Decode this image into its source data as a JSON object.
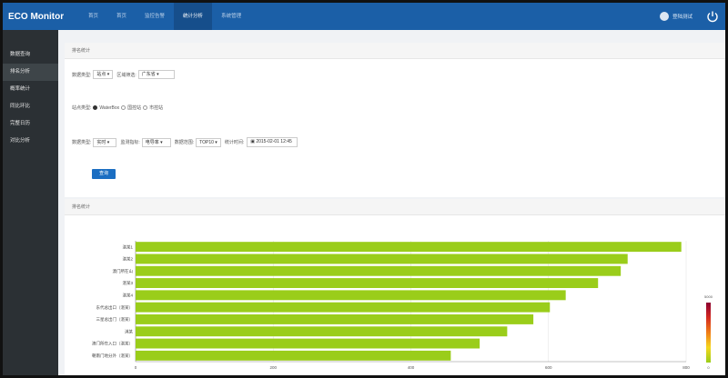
{
  "app": {
    "title": "ECO Monitor"
  },
  "nav": {
    "items": [
      {
        "label": "首页",
        "active": false
      },
      {
        "label": "首页",
        "active": false
      },
      {
        "label": "监控告警",
        "active": false
      },
      {
        "label": "统计分析",
        "active": true
      },
      {
        "label": "系统管理",
        "active": false
      }
    ]
  },
  "user": {
    "name": "登陆测试"
  },
  "sidebar": {
    "items": [
      {
        "label": "数据查询",
        "active": false
      },
      {
        "label": "排名分析",
        "active": true
      },
      {
        "label": "概率统计",
        "active": false
      },
      {
        "label": "同比环比",
        "active": false
      },
      {
        "label": "完整日历",
        "active": false
      },
      {
        "label": "对比分析",
        "active": false
      }
    ]
  },
  "filters": {
    "title": "排名统计",
    "data_type_label": "数据类型:",
    "data_type_value": "站点",
    "region_label": "区域筛选:",
    "region_value": "广东省",
    "station_type_label": "站点类型:",
    "station_options": [
      "WaterBox",
      "国控站",
      "市控站"
    ],
    "period_label": "数据类型:",
    "period_value": "实时",
    "indicator_label": "监测指标:",
    "indicator_value": "电导率",
    "range_label": "数据范围:",
    "range_value": "TOP10",
    "time_label": "统计时间:",
    "time_value": "2015-02-01 12:45",
    "query_label": "查询"
  },
  "chart_panel": {
    "title": "排名统计"
  },
  "chart_data": {
    "type": "bar",
    "orientation": "horizontal",
    "categories": [
      "湛某1",
      "湛某2",
      "澳门所在山",
      "湛某3",
      "湛某4",
      "东代总出口（湛某）",
      "三星总出门（湛某）",
      "淇某",
      "澳门所在入口（湛某）",
      "朝南门地分外（湛某）"
    ],
    "values": [
      793,
      715,
      705,
      672,
      625,
      602,
      578,
      540,
      500,
      458
    ],
    "xlim": [
      0,
      800
    ],
    "xticks": [
      0,
      200,
      400,
      600,
      800
    ],
    "bar_color": "#9acd1a",
    "visual_map": {
      "max_label": "5000",
      "min_label": "0",
      "colors": [
        "#8b0030",
        "#d42a20",
        "#f07c17",
        "#f5d71d",
        "#9acd1a"
      ]
    }
  }
}
